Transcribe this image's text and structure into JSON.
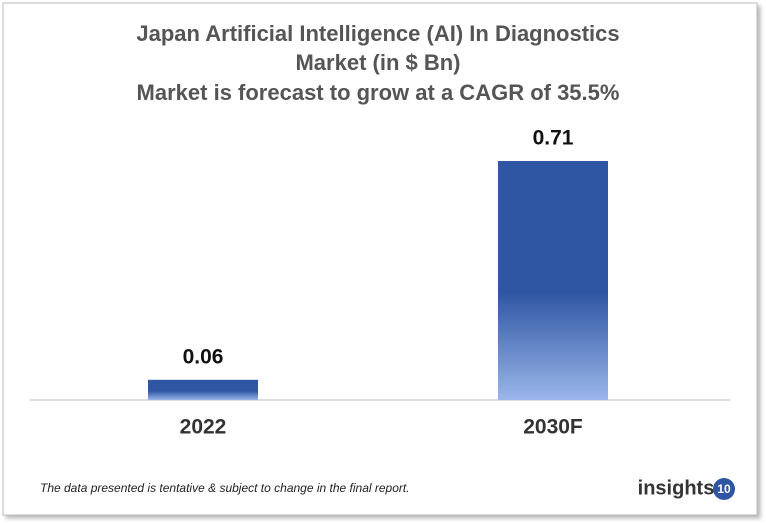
{
  "chart_data": {
    "type": "bar",
    "title": [
      "Japan Artificial Intelligence (AI) In Diagnostics",
      "Market  (in $ Bn)"
    ],
    "subtitle": "Market is forecast to grow at a CAGR of 35.5%",
    "categories": [
      "2022",
      "2030F"
    ],
    "values": [
      0.06,
      0.71
    ],
    "color": "#2f56a3",
    "footnote": "The data presented is tentative & subject to change in the final report.",
    "logo": "insights",
    "logo_badge": "10"
  }
}
